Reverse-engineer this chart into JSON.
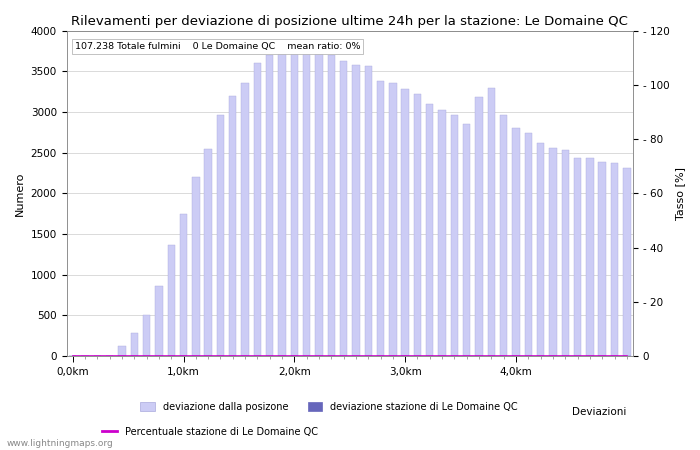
{
  "title": "Rilevamenti per deviazione di posizione ultime 24h per la stazione: Le Domaine QC",
  "subtitle": "107.238 Totale fulmini    0 Le Domaine QC    mean ratio: 0%",
  "ylabel_left": "Numero",
  "ylabel_right": "Tasso [%]",
  "xlim": [
    0,
    46
  ],
  "ylim_left": [
    0,
    4000
  ],
  "ylim_right": [
    0,
    120
  ],
  "yticks_left": [
    0,
    500,
    1000,
    1500,
    2000,
    2500,
    3000,
    3500,
    4000
  ],
  "yticks_right": [
    0,
    20,
    40,
    60,
    80,
    100,
    120
  ],
  "xtick_labels": [
    "0,0km",
    "1,0km",
    "2,0km",
    "3,0km",
    "4,0km"
  ],
  "xtick_positions": [
    0,
    9,
    18,
    27,
    36
  ],
  "bar_values": [
    0,
    0,
    0,
    0,
    120,
    280,
    500,
    860,
    1360,
    1740,
    2200,
    2550,
    2960,
    3200,
    3350,
    3600,
    3700,
    3720,
    3740,
    3760,
    3750,
    3700,
    3620,
    3580,
    3570,
    3380,
    3350,
    3280,
    3220,
    3100,
    3020,
    2960,
    2850,
    3180,
    3300,
    2960,
    2800,
    2740,
    2620,
    2560,
    2530,
    2440,
    2440,
    2390,
    2370,
    2310
  ],
  "station_values": [
    0,
    0,
    0,
    0,
    0,
    0,
    0,
    0,
    0,
    0,
    0,
    0,
    0,
    0,
    0,
    0,
    0,
    0,
    0,
    0,
    0,
    0,
    0,
    0,
    0,
    0,
    0,
    0,
    0,
    0,
    0,
    0,
    0,
    0,
    0,
    0,
    0,
    0,
    0,
    0,
    0,
    0,
    0,
    0,
    0,
    0
  ],
  "percentage_values": [
    0,
    0,
    0,
    0,
    0,
    0,
    0,
    0,
    0,
    0,
    0,
    0,
    0,
    0,
    0,
    0,
    0,
    0,
    0,
    0,
    0,
    0,
    0,
    0,
    0,
    0,
    0,
    0,
    0,
    0,
    0,
    0,
    0,
    0,
    0,
    0,
    0,
    0,
    0,
    0,
    0,
    0,
    0,
    0,
    0,
    0
  ],
  "bar_color_light": "#ccccf5",
  "bar_color_dark": "#6666bb",
  "bar_edge_color": "#aaaadd",
  "percentage_line_color": "#cc00cc",
  "grid_color": "#cccccc",
  "background_color": "#ffffff",
  "watermark": "www.lightningmaps.org",
  "legend_label_light": "deviazione dalla posizone",
  "legend_label_dark": "deviazione stazione di Le Domaine QC",
  "legend_label_pct": "Percentuale stazione di Le Domaine QC",
  "title_fontsize": 9.5,
  "axis_fontsize": 8,
  "tick_fontsize": 7.5
}
